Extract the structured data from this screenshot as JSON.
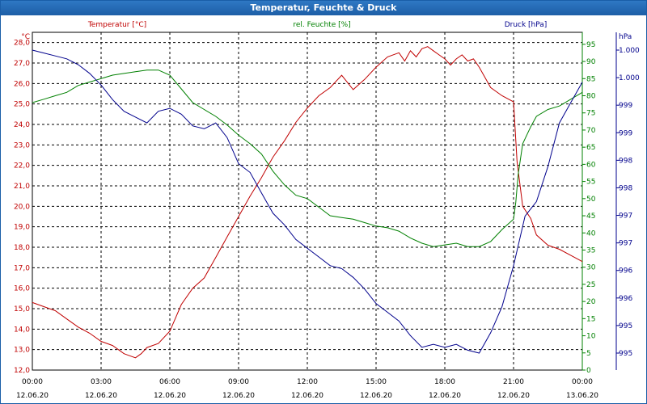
{
  "window": {
    "title": "Temperatur, Feuchte & Druck"
  },
  "chart_data": {
    "type": "line",
    "title": "Temperatur, Feuchte & Druck",
    "grid": true,
    "colors": {
      "temperature": "#c00000",
      "humidity": "#008000",
      "pressure": "#00008c",
      "axis": "#000000"
    },
    "x_ticks": [
      {
        "time": "00:00",
        "date": "12.06.20"
      },
      {
        "time": "03:00",
        "date": "12.06.20"
      },
      {
        "time": "06:00",
        "date": "12.06.20"
      },
      {
        "time": "09:00",
        "date": "12.06.20"
      },
      {
        "time": "12:00",
        "date": "12.06.20"
      },
      {
        "time": "15:00",
        "date": "12.06.20"
      },
      {
        "time": "18:00",
        "date": "12.06.20"
      },
      {
        "time": "21:00",
        "date": "12.06.20"
      },
      {
        "time": "00:00",
        "date": "13.06.20"
      }
    ],
    "xlim": [
      0,
      24
    ],
    "axes": {
      "temperature": {
        "label": "Temperatur [°C]",
        "unit": "°C",
        "ylim": [
          12.0,
          28.5
        ],
        "ticks": [
          "12,0",
          "13,0",
          "14,0",
          "15,0",
          "16,0",
          "17,0",
          "18,0",
          "19,0",
          "20,0",
          "21,0",
          "22,0",
          "23,0",
          "24,0",
          "25,0",
          "26,0",
          "27,0",
          "28,0"
        ]
      },
      "humidity": {
        "label": "rel. Feuchte [%]",
        "unit": "%",
        "ylim": [
          0,
          98.5
        ],
        "ticks": [
          "0",
          "5",
          "10",
          "15",
          "20",
          "25",
          "30",
          "35",
          "40",
          "45",
          "50",
          "55",
          "60",
          "65",
          "70",
          "75",
          "80",
          "85",
          "90",
          "95"
        ]
      },
      "pressure": {
        "label": "Druck [hPa]",
        "unit": "hPa",
        "ticks": [
          "995",
          "995",
          "996",
          "996",
          "997",
          "997",
          "998",
          "998",
          "999",
          "999",
          "1.000",
          "1.000"
        ]
      }
    },
    "series": [
      {
        "name": "Temperatur [°C]",
        "axis": "temperature",
        "x": [
          0,
          0.5,
          1,
          1.5,
          2,
          2.5,
          3,
          3.5,
          4,
          4.25,
          4.5,
          4.75,
          5,
          5.5,
          6,
          6.5,
          7,
          7.5,
          8,
          8.5,
          9,
          9.5,
          10,
          10.5,
          11,
          11.5,
          12,
          12.5,
          13,
          13.5,
          14,
          14.5,
          15,
          15.5,
          16,
          16.25,
          16.5,
          16.75,
          17,
          17.25,
          17.5,
          17.75,
          18,
          18.25,
          18.5,
          18.75,
          19,
          19.25,
          19.5,
          19.75,
          20,
          20.5,
          21,
          21.15,
          21.4,
          21.75,
          22,
          22.5,
          23,
          23.5,
          24
        ],
        "values": [
          15.3,
          15.1,
          14.9,
          14.5,
          14.1,
          13.8,
          13.4,
          13.2,
          12.8,
          12.7,
          12.6,
          12.8,
          13.1,
          13.3,
          13.9,
          15.2,
          16.0,
          16.5,
          17.5,
          18.5,
          19.5,
          20.5,
          21.4,
          22.4,
          23.2,
          24.1,
          24.8,
          25.4,
          25.8,
          26.4,
          25.7,
          26.2,
          26.8,
          27.3,
          27.5,
          27.1,
          27.6,
          27.3,
          27.7,
          27.8,
          27.6,
          27.4,
          27.2,
          26.9,
          27.2,
          27.4,
          27.1,
          27.2,
          26.8,
          26.3,
          25.8,
          25.4,
          25.1,
          22.2,
          20.0,
          19.4,
          18.6,
          18.1,
          17.9,
          17.6,
          17.3
        ]
      },
      {
        "name": "rel. Feuchte [%]",
        "axis": "humidity",
        "x": [
          0,
          0.5,
          1,
          1.5,
          2,
          2.5,
          3,
          3.5,
          4,
          4.5,
          5,
          5.5,
          6,
          6.5,
          7,
          7.5,
          8,
          8.5,
          9,
          9.5,
          10,
          10.5,
          11,
          11.5,
          12,
          12.5,
          13,
          13.5,
          14,
          14.5,
          15,
          15.5,
          16,
          16.5,
          17,
          17.5,
          18,
          18.5,
          19,
          19.5,
          20,
          20.5,
          21,
          21.1,
          21.2,
          21.4,
          21.75,
          22,
          22.5,
          23,
          23.5,
          24
        ],
        "values": [
          78,
          79,
          80,
          81,
          83,
          84,
          85,
          86,
          86.5,
          87,
          87.5,
          87.5,
          86,
          82,
          78,
          76,
          74,
          71.5,
          68.5,
          66,
          63,
          58,
          54,
          51,
          50,
          47.5,
          45,
          44.5,
          44,
          43,
          42,
          41.5,
          40.5,
          38.5,
          37,
          36,
          36.5,
          37,
          36,
          36,
          37.5,
          41,
          44,
          49,
          57,
          66,
          71,
          74,
          76,
          77,
          79,
          81
        ]
      },
      {
        "name": "Druck [hPa]",
        "axis": "pressure",
        "x": [
          0,
          0.5,
          1,
          1.5,
          2,
          2.5,
          3,
          3.5,
          4,
          4.5,
          5,
          5.5,
          6,
          6.5,
          7,
          7.5,
          8,
          8.5,
          9,
          9.5,
          10,
          10.5,
          11,
          11.5,
          12,
          12.5,
          13,
          13.5,
          14,
          14.5,
          15,
          15.5,
          16,
          16.5,
          17,
          17.5,
          18,
          18.5,
          19,
          19.5,
          20,
          20.5,
          21,
          21.5,
          22,
          22.5,
          23,
          23.5,
          24
        ],
        "values": [
          1000.2,
          1000.15,
          1000.1,
          1000.05,
          999.95,
          999.8,
          999.6,
          999.35,
          999.15,
          999.05,
          998.95,
          999.15,
          999.2,
          999.1,
          998.9,
          998.85,
          998.95,
          998.7,
          998.25,
          998.1,
          997.75,
          997.4,
          997.2,
          996.95,
          996.8,
          996.65,
          996.5,
          996.45,
          996.3,
          996.1,
          995.85,
          995.7,
          995.55,
          995.3,
          995.1,
          995.15,
          995.1,
          995.15,
          995.05,
          995.0,
          995.35,
          995.8,
          996.5,
          997.35,
          997.6,
          998.2,
          998.95,
          999.3,
          999.65
        ]
      }
    ]
  }
}
